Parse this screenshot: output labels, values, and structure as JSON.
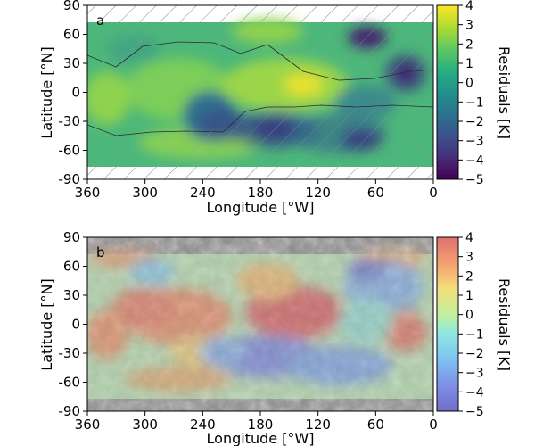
{
  "chart_data": [
    {
      "type": "heatmap",
      "panel_label": "a",
      "xlabel": "Longitude [°W]",
      "ylabel": "Latitude [°N]",
      "xlim": [
        360,
        0
      ],
      "ylim": [
        -90,
        90
      ],
      "xticks": [
        "360",
        "300",
        "240",
        "180",
        "120",
        "60",
        "0"
      ],
      "yticks": [
        "90",
        "60",
        "30",
        "0",
        "-30",
        "-60",
        "-90"
      ],
      "colorbar_label": "Residuals [K]",
      "colorbar_ticks": [
        "4",
        "3",
        "2",
        "1",
        "0",
        "−1",
        "−2",
        "−3",
        "−4",
        "−5"
      ],
      "clim": [
        -5,
        4
      ],
      "colormap": "viridis",
      "data_lat_range": [
        -75,
        75
      ],
      "hatched_regions": "areas outside the mapped boundary lines near the poles",
      "features": [
        {
          "lon": 25,
          "lat": 18,
          "residual": -4.6
        },
        {
          "lon": 75,
          "lat": 55,
          "residual": -3.2
        },
        {
          "lon": 165,
          "lat": -38,
          "residual": -4.2
        },
        {
          "lon": 75,
          "lat": -48,
          "residual": -3.8
        },
        {
          "lon": 230,
          "lat": -30,
          "residual": -2.5
        },
        {
          "lon": 130,
          "lat": 10,
          "residual": 2.8
        },
        {
          "lon": 335,
          "lat": -20,
          "residual": 1.8
        },
        {
          "lon": 200,
          "lat": 25,
          "residual": 1.5
        }
      ]
    },
    {
      "type": "heatmap",
      "panel_label": "b",
      "xlabel": "Longitude [°W]",
      "ylabel": "Latitude [°N]",
      "xlim": [
        360,
        0
      ],
      "ylim": [
        -90,
        90
      ],
      "xticks": [
        "360",
        "300",
        "240",
        "180",
        "120",
        "60",
        "0"
      ],
      "yticks": [
        "90",
        "60",
        "30",
        "0",
        "-30",
        "-60",
        "-90"
      ],
      "colorbar_label": "Residuals [K]",
      "colorbar_ticks": [
        "4",
        "3",
        "2",
        "1",
        "0",
        "−1",
        "−2",
        "−3",
        "−4",
        "−5"
      ],
      "clim": [
        -5,
        4
      ],
      "colormap": "jet (semi-transparent overlay on grayscale basemap)",
      "data_lat_range": [
        -75,
        75
      ],
      "features": [
        {
          "lon": 25,
          "lat": 18,
          "residual": -4.6
        },
        {
          "lon": 75,
          "lat": 55,
          "residual": -3.2
        },
        {
          "lon": 165,
          "lat": -38,
          "residual": -4.2
        },
        {
          "lon": 75,
          "lat": -48,
          "residual": -3.8
        },
        {
          "lon": 230,
          "lat": -30,
          "residual": -2.5
        },
        {
          "lon": 130,
          "lat": 10,
          "residual": 2.8
        },
        {
          "lon": 335,
          "lat": -20,
          "residual": 1.8
        },
        {
          "lon": 200,
          "lat": 25,
          "residual": 1.5
        }
      ]
    }
  ]
}
